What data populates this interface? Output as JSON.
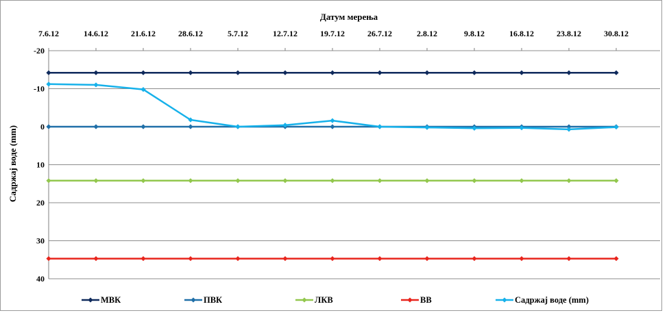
{
  "chart_data": {
    "type": "line",
    "title": "",
    "xlabel": "Датум мерења",
    "ylabel": "Садржај воде  (mm)",
    "x_axis_position": "top",
    "y_reversed": true,
    "ylim": [
      -20,
      40
    ],
    "yticks": [
      -20,
      -10,
      0,
      10,
      20,
      30,
      40
    ],
    "ytick_labels": [
      "-20",
      "-10",
      "0",
      "10",
      "20",
      "30",
      "40"
    ],
    "grid": "horizontal",
    "legend_position": "bottom",
    "categories": [
      "7.6.12",
      "14.6.12",
      "21.6.12",
      "28.6.12",
      "5.7.12",
      "12.7.12",
      "19.7.12",
      "26.7.12",
      "2.8.12",
      "9.8.12",
      "16.8.12",
      "23.8.12",
      "30.8.12"
    ],
    "series": [
      {
        "name": "МВК",
        "color": "#0f2a5c",
        "values": [
          -14.2,
          -14.2,
          -14.2,
          -14.2,
          -14.2,
          -14.2,
          -14.2,
          -14.2,
          -14.2,
          -14.2,
          -14.2,
          -14.2,
          -14.2
        ]
      },
      {
        "name": "ПВК",
        "color": "#1f6fa8",
        "values": [
          0,
          0,
          0,
          0,
          0,
          0,
          0,
          0,
          0,
          0,
          0,
          0,
          0
        ]
      },
      {
        "name": "ЛКВ",
        "color": "#92c74d",
        "values": [
          14.2,
          14.2,
          14.2,
          14.2,
          14.2,
          14.2,
          14.2,
          14.2,
          14.2,
          14.2,
          14.2,
          14.2,
          14.2
        ]
      },
      {
        "name": "ВВ",
        "color": "#e8241c",
        "values": [
          34.7,
          34.7,
          34.7,
          34.7,
          34.7,
          34.7,
          34.7,
          34.7,
          34.7,
          34.7,
          34.7,
          34.7,
          34.7
        ]
      },
      {
        "name": "Садржај воде (mm)",
        "color": "#16b1ea",
        "values": [
          -11.2,
          -11,
          -9.8,
          -1.8,
          0,
          -0.4,
          -1.6,
          0,
          0.2,
          0.4,
          0.3,
          0.7,
          0.1
        ]
      }
    ]
  }
}
